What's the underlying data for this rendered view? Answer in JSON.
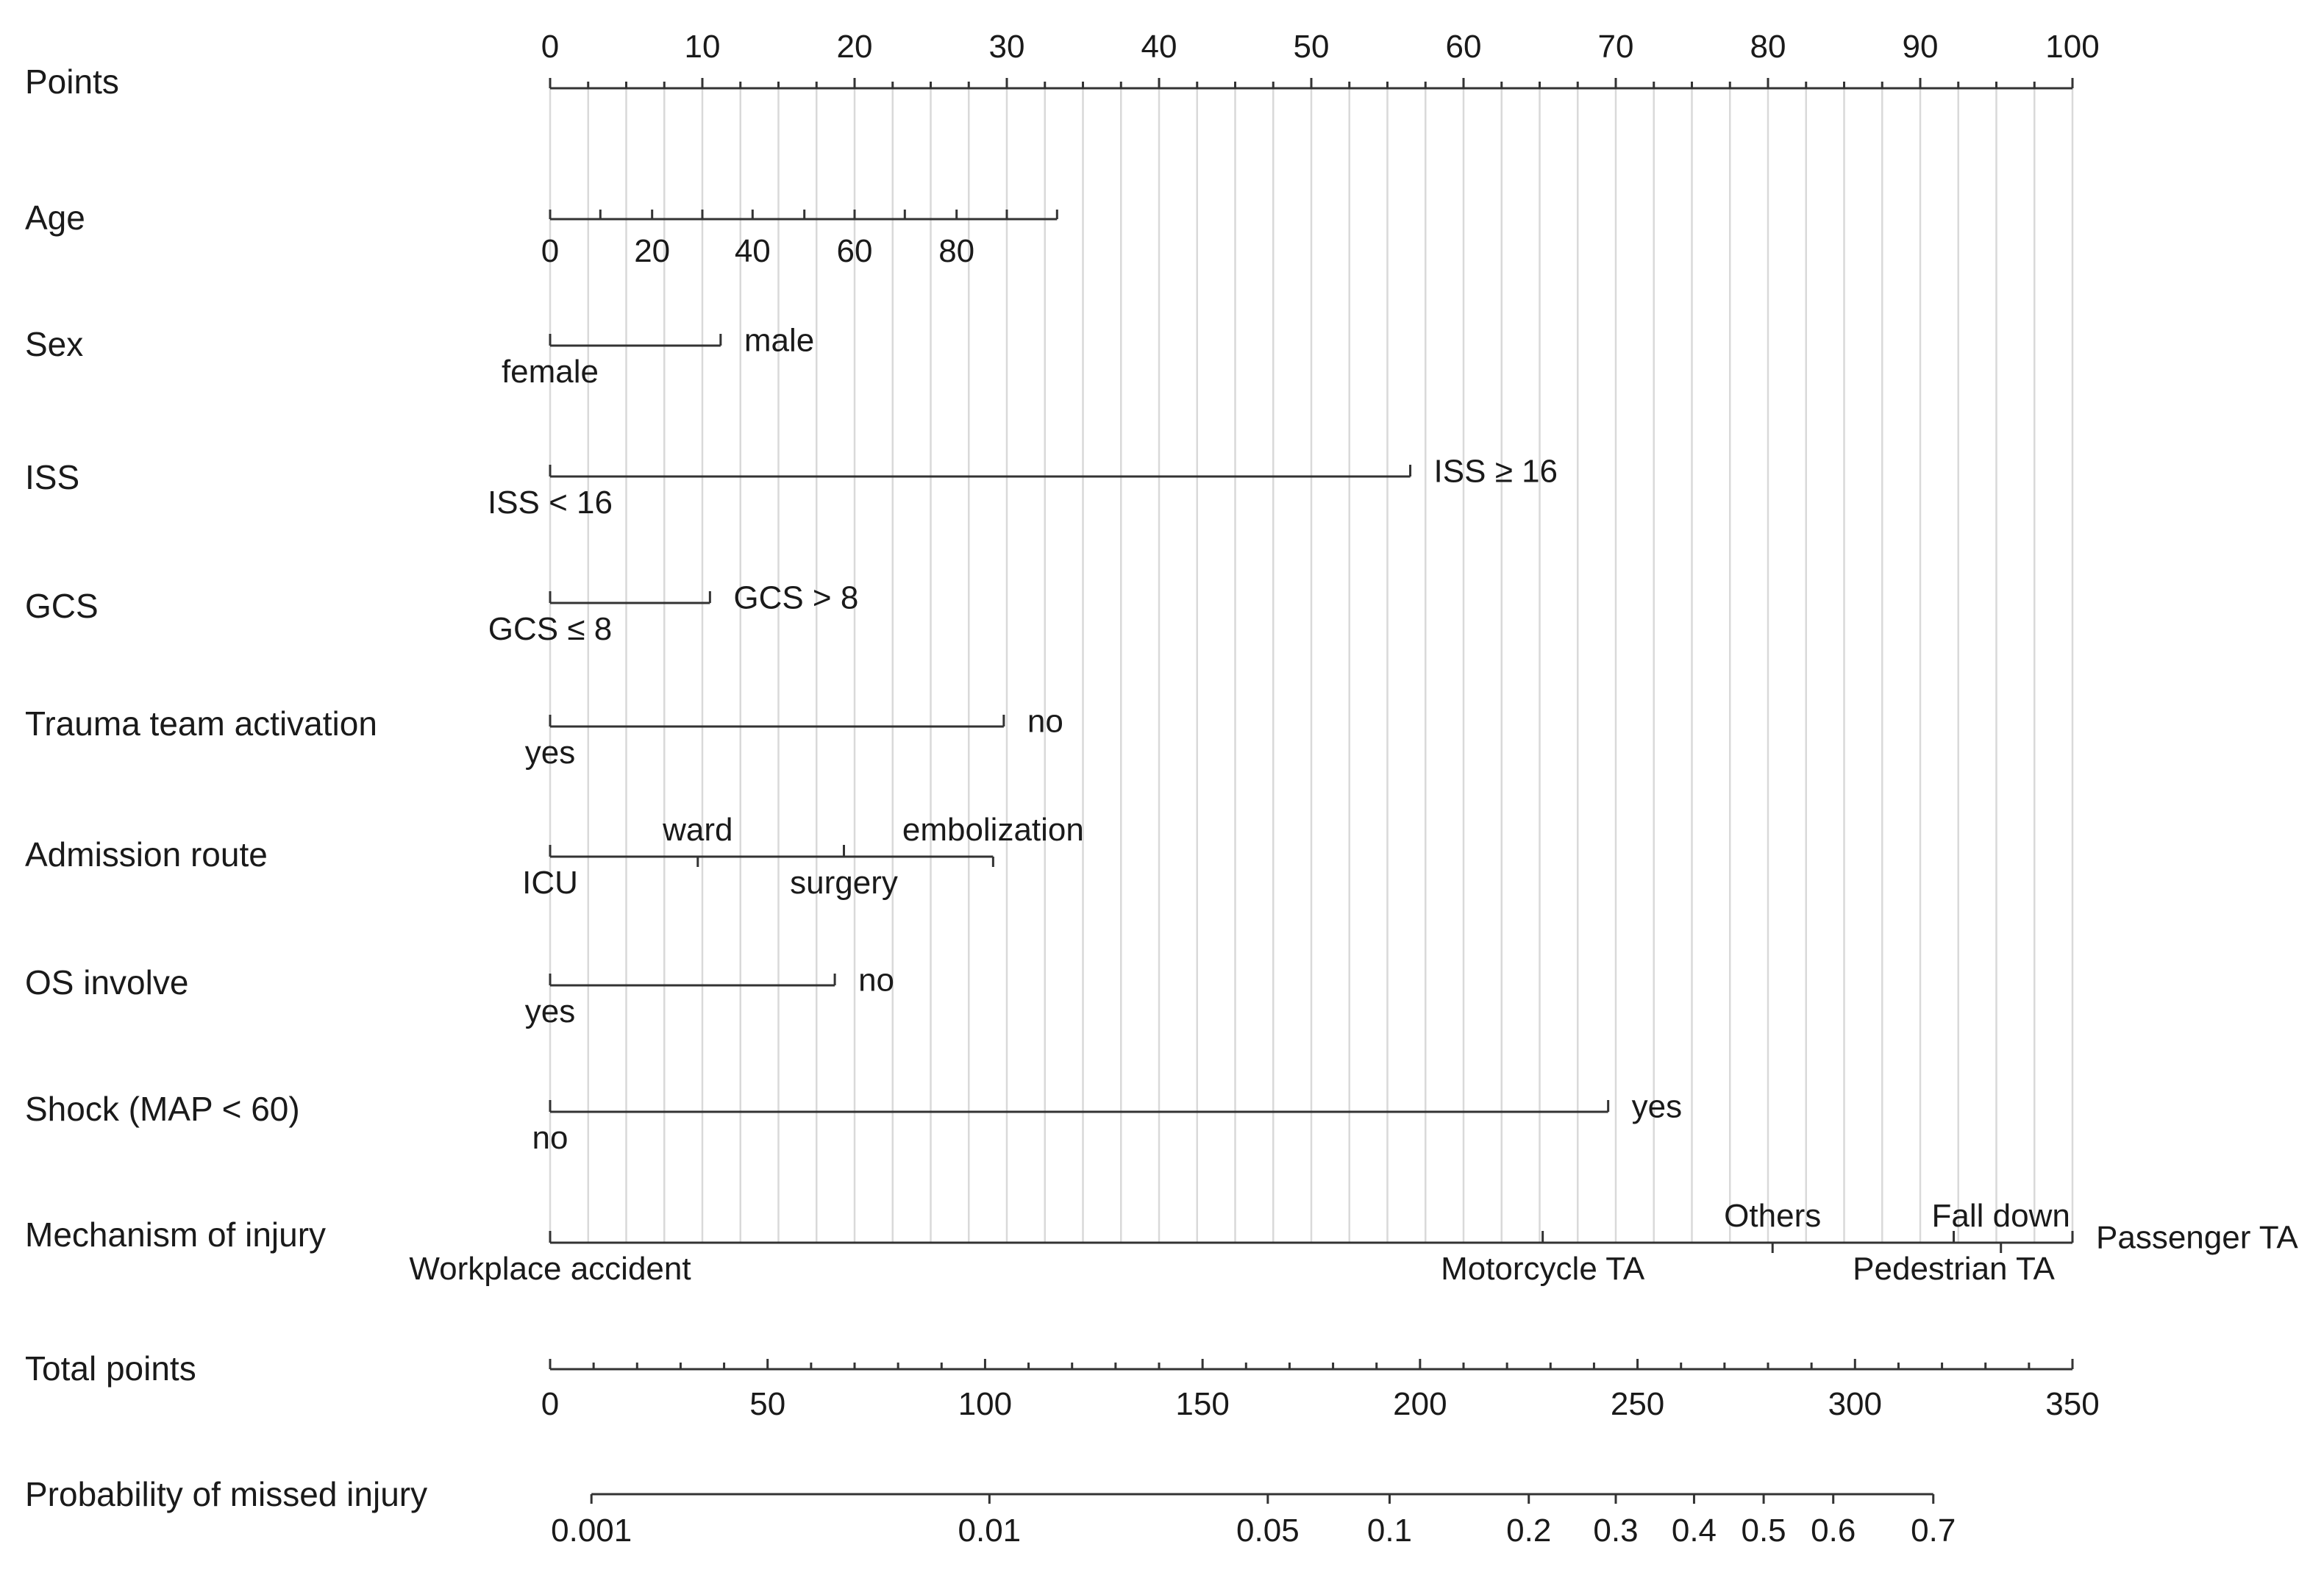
{
  "chart_data": {
    "type": "nomogram",
    "title": "",
    "points_axis": {
      "label": "Points",
      "min": 0,
      "max": 100,
      "ticks": [
        0,
        10,
        20,
        30,
        40,
        50,
        60,
        70,
        80,
        90,
        100
      ],
      "minor_step": 2.5
    },
    "variables": [
      {
        "name": "Age",
        "type": "continuous",
        "range_points": [
          0,
          33.3
        ],
        "tick_points": [
          0,
          3.3,
          6.7,
          10,
          13.3,
          16.7,
          20,
          23.3,
          26.7,
          30,
          33.3
        ],
        "labels": [
          {
            "text": "0",
            "at": 0
          },
          {
            "text": "20",
            "at": 6.7
          },
          {
            "text": "40",
            "at": 13.3
          },
          {
            "text": "60",
            "at": 20
          },
          {
            "text": "80",
            "at": 26.7
          }
        ]
      },
      {
        "name": "Sex",
        "type": "categorical",
        "levels": [
          {
            "label": "female",
            "points": 0,
            "pos": "below"
          },
          {
            "label": "male",
            "points": 11.2,
            "pos": "right"
          }
        ]
      },
      {
        "name": "ISS",
        "type": "categorical",
        "levels": [
          {
            "label": "ISS < 16",
            "points": 0,
            "pos": "below"
          },
          {
            "label": "ISS ≥ 16",
            "points": 56.5,
            "pos": "right"
          }
        ]
      },
      {
        "name": "GCS",
        "type": "categorical",
        "levels": [
          {
            "label": "GCS ≤ 8",
            "points": 0,
            "pos": "below"
          },
          {
            "label": "GCS > 8",
            "points": 10.5,
            "pos": "right"
          }
        ]
      },
      {
        "name": "Trauma team activation",
        "type": "categorical",
        "levels": [
          {
            "label": "yes",
            "points": 0,
            "pos": "below"
          },
          {
            "label": "no",
            "points": 29.8,
            "pos": "right"
          }
        ]
      },
      {
        "name": "Admission route",
        "type": "categorical",
        "levels": [
          {
            "label": "ICU",
            "points": 0,
            "pos": "below"
          },
          {
            "label": "ward",
            "points": 9.7,
            "pos": "above"
          },
          {
            "label": "surgery",
            "points": 19.3,
            "pos": "below"
          },
          {
            "label": "embolization",
            "points": 29.1,
            "pos": "above"
          }
        ]
      },
      {
        "name": "OS involve",
        "type": "categorical",
        "levels": [
          {
            "label": "yes",
            "points": 0,
            "pos": "below"
          },
          {
            "label": "no",
            "points": 18.7,
            "pos": "right"
          }
        ]
      },
      {
        "name": "Shock (MAP < 60)",
        "type": "categorical",
        "levels": [
          {
            "label": "no",
            "points": 0,
            "pos": "below"
          },
          {
            "label": "yes",
            "points": 69.5,
            "pos": "right"
          }
        ]
      },
      {
        "name": "Mechanism of injury",
        "type": "categorical",
        "levels": [
          {
            "label": "Workplace accident",
            "points": 0,
            "pos": "below"
          },
          {
            "label": "Motorcycle TA",
            "points": 65.2,
            "pos": "below"
          },
          {
            "label": "Others",
            "points": 80.3,
            "pos": "above"
          },
          {
            "label": "Pedestrian TA",
            "points": 92.2,
            "pos": "below"
          },
          {
            "label": "Fall down",
            "points": 95.3,
            "pos": "above"
          },
          {
            "label": "Passenger TA",
            "points": 100,
            "pos": "right"
          }
        ]
      }
    ],
    "total_points_axis": {
      "label": "Total points",
      "min": 0,
      "max": 350,
      "ticks": [
        0,
        50,
        100,
        150,
        200,
        250,
        300,
        350
      ],
      "minor_step": 10
    },
    "probability_axis": {
      "label": "Probability of missed injury",
      "ticks": [
        {
          "label": "0.001",
          "total_points": 9.5
        },
        {
          "label": "0.01",
          "total_points": 101
        },
        {
          "label": "0.05",
          "total_points": 165
        },
        {
          "label": "0.1",
          "total_points": 193
        },
        {
          "label": "0.2",
          "total_points": 225
        },
        {
          "label": "0.3",
          "total_points": 245
        },
        {
          "label": "0.4",
          "total_points": 263
        },
        {
          "label": "0.5",
          "total_points": 279
        },
        {
          "label": "0.6",
          "total_points": 295
        },
        {
          "label": "0.7",
          "total_points": 318
        }
      ]
    }
  }
}
